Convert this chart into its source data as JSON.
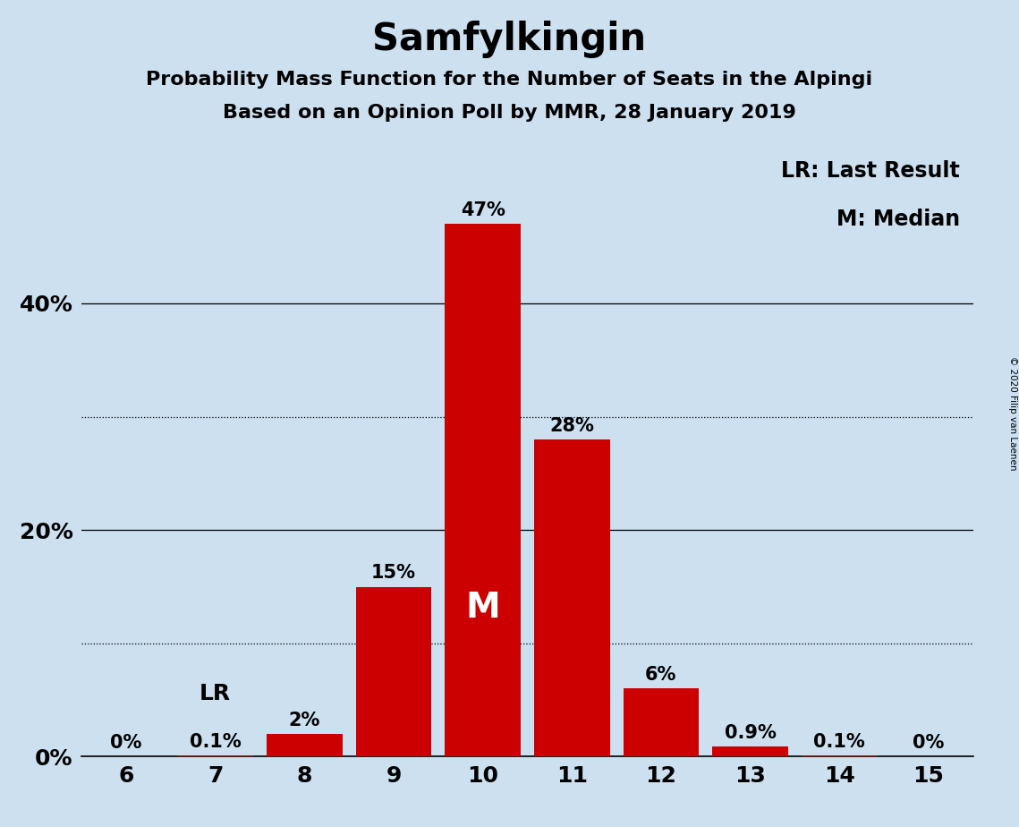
{
  "title": "Samfylkingin",
  "subtitle1": "Probability Mass Function for the Number of Seats in the Alpingi",
  "subtitle2": "Based on an Opinion Poll by MMR, 28 January 2019",
  "copyright": "© 2020 Filip van Laenen",
  "categories": [
    6,
    7,
    8,
    9,
    10,
    11,
    12,
    13,
    14,
    15
  ],
  "values": [
    0.0,
    0.1,
    2.0,
    15.0,
    47.0,
    28.0,
    6.0,
    0.9,
    0.1,
    0.0
  ],
  "labels": [
    "0%",
    "0.1%",
    "2%",
    "15%",
    "47%",
    "28%",
    "6%",
    "0.9%",
    "0.1%",
    "0%"
  ],
  "bar_color": "#cc0000",
  "background_color": "#cce0f0",
  "median_seat": 10,
  "median_label": "M",
  "median_label_color": "#ffffff",
  "lr_seat": 7,
  "lr_label": "LR",
  "yticks": [
    0,
    20,
    40
  ],
  "ytick_labels": [
    "0%",
    "20%",
    "40%"
  ],
  "ylim": [
    0,
    54
  ],
  "solid_gridlines": [
    0,
    20,
    40
  ],
  "dotted_gridlines": [
    10,
    30
  ],
  "legend_lr": "LR: Last Result",
  "legend_m": "M: Median",
  "title_fontsize": 30,
  "subtitle_fontsize": 16,
  "label_fontsize": 15,
  "tick_fontsize": 18
}
